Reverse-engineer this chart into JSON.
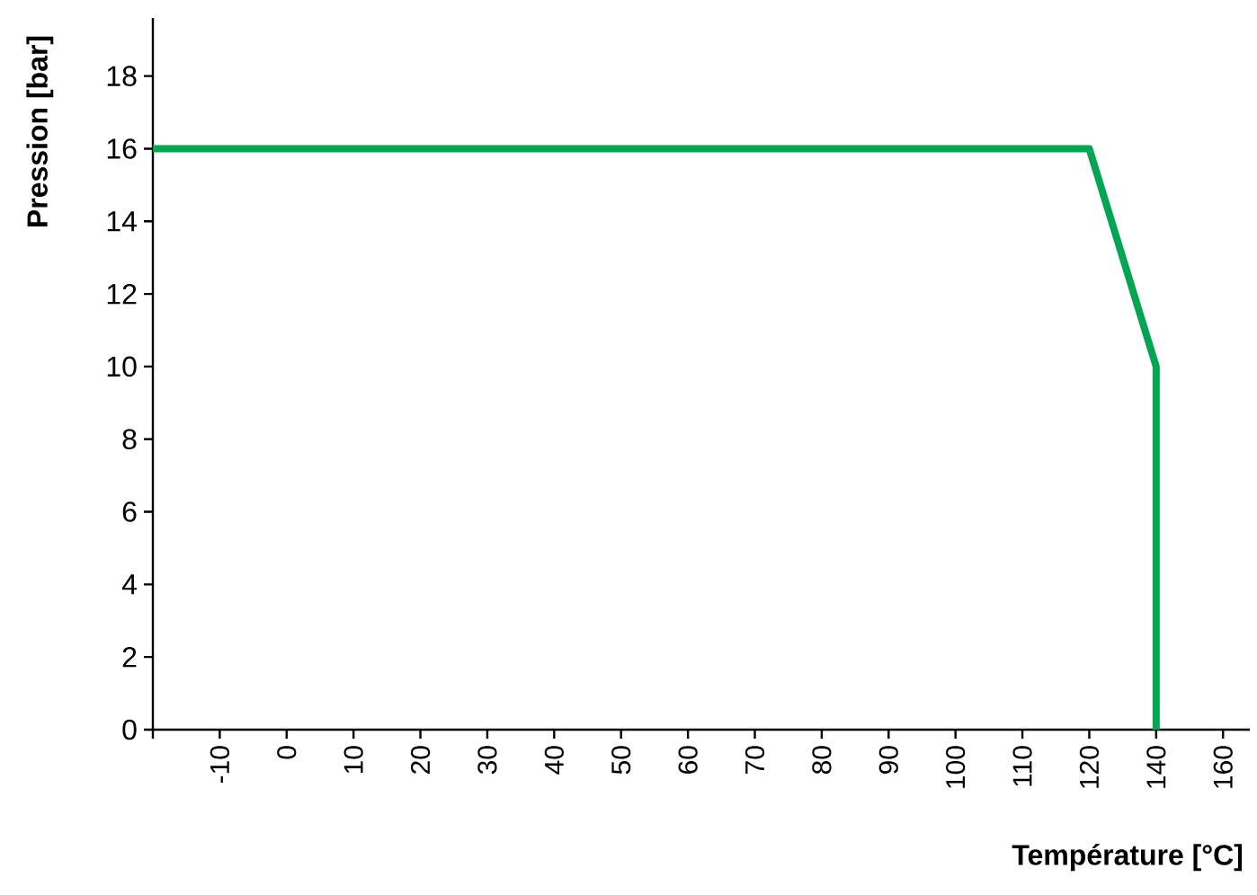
{
  "chart_data": {
    "type": "line",
    "xlabel": "Température [°C]",
    "ylabel": "Pression [bar]",
    "categories": [
      null,
      "-10",
      "0",
      "10",
      "20",
      "30",
      "40",
      "50",
      "60",
      "70",
      "80",
      "90",
      "100",
      "110",
      "120",
      "140",
      "160"
    ],
    "series": [
      {
        "color": "#00a651",
        "x": [
          null,
          "120",
          "140",
          "140"
        ],
        "values": [
          16,
          16,
          10,
          0
        ]
      }
    ],
    "ylim": [
      0,
      19.6
    ],
    "yticks": [
      0,
      2,
      4,
      6,
      8,
      10,
      12,
      14,
      16,
      18
    ],
    "grid": false,
    "marker": "none",
    "line_style": "solid"
  }
}
